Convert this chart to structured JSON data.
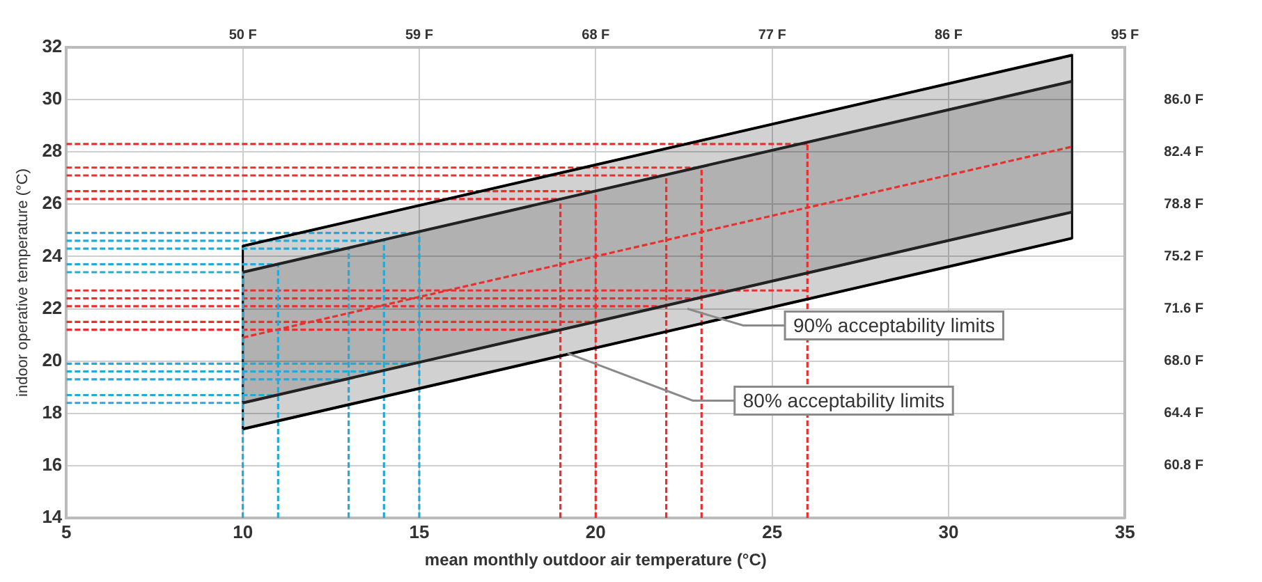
{
  "chart_data": {
    "type": "line",
    "xlabel": "mean monthly outdoor air temperature (°C)",
    "ylabel": "indoor operative temperature (°C)",
    "xlim": [
      5,
      35
    ],
    "xticks": [
      5,
      10,
      15,
      20,
      25,
      30,
      35
    ],
    "ylim": [
      14,
      32
    ],
    "yticks": [
      14,
      16,
      18,
      20,
      22,
      24,
      26,
      28,
      30,
      32
    ],
    "x2lim": [
      41,
      95
    ],
    "x2ticks": [
      {
        "value": 50,
        "label": "50 F"
      },
      {
        "value": 59,
        "label": "59 F"
      },
      {
        "value": 68,
        "label": "68 F"
      },
      {
        "value": 77,
        "label": "77 F"
      },
      {
        "value": 86,
        "label": "86 F"
      },
      {
        "value": 95,
        "label": "95 F"
      }
    ],
    "y2lim": [
      57.2,
      89.6
    ],
    "y2ticks": [
      {
        "value": 60.8,
        "label": "60.8 F"
      },
      {
        "value": 64.4,
        "label": "64.4 F"
      },
      {
        "value": 68.0,
        "label": "68.0 F"
      },
      {
        "value": 71.6,
        "label": "71.6 F"
      },
      {
        "value": 75.2,
        "label": "75.2 F"
      },
      {
        "value": 78.8,
        "label": "78.8 F"
      },
      {
        "value": 82.4,
        "label": "82.4 F"
      },
      {
        "value": 86.0,
        "label": "86.0 F"
      }
    ],
    "grid": true,
    "legend": false,
    "marker": "none",
    "series": [
      {
        "type": "line",
        "color": "#000000",
        "x": [
          10,
          33.5
        ],
        "values": [
          24.4,
          31.7
        ],
        "lower": [
          17.4,
          24.7
        ],
        "upper": [
          24.4,
          31.7
        ]
      },
      {
        "type": "line",
        "color": "#000000",
        "x": [
          10,
          33.5
        ],
        "values": [
          17.4,
          24.7
        ]
      },
      {
        "type": "line",
        "color": "#222222",
        "x": [
          10,
          33.5
        ],
        "values": [
          23.4,
          30.7
        ],
        "lower": [
          18.4,
          25.7
        ],
        "upper": [
          23.4,
          30.7
        ]
      },
      {
        "type": "line",
        "color": "#222222",
        "x": [
          10,
          33.5
        ],
        "values": [
          18.4,
          25.7
        ]
      },
      {
        "type": "line",
        "color": "#e8312f",
        "line_style": "dashed",
        "x": [
          10,
          33.5
        ],
        "values": [
          20.9,
          28.2
        ]
      },
      {
        "type": "line",
        "color": "#27a9d6",
        "line_style": "dashed",
        "x": [
          10,
          10
        ],
        "values": [
          14,
          23.4
        ]
      },
      {
        "type": "line",
        "color": "#27a9d6",
        "line_style": "dashed",
        "x": [
          5,
          10
        ],
        "values": [
          23.4,
          23.4
        ]
      },
      {
        "type": "line",
        "color": "#27a9d6",
        "line_style": "dashed",
        "x": [
          5,
          10
        ],
        "values": [
          18.4,
          18.4
        ]
      },
      {
        "type": "line",
        "color": "#27a9d6",
        "line_style": "dashed",
        "x": [
          11,
          11
        ],
        "values": [
          14,
          23.7
        ]
      },
      {
        "type": "line",
        "color": "#27a9d6",
        "line_style": "dashed",
        "x": [
          5,
          11
        ],
        "values": [
          23.7,
          23.7
        ]
      },
      {
        "type": "line",
        "color": "#27a9d6",
        "line_style": "dashed",
        "x": [
          5,
          11
        ],
        "values": [
          18.7,
          18.7
        ]
      },
      {
        "type": "line",
        "color": "#27a9d6",
        "line_style": "dashed",
        "x": [
          13,
          13
        ],
        "values": [
          14,
          24.3
        ]
      },
      {
        "type": "line",
        "color": "#27a9d6",
        "line_style": "dashed",
        "x": [
          5,
          13
        ],
        "values": [
          24.3,
          24.3
        ]
      },
      {
        "type": "line",
        "color": "#27a9d6",
        "line_style": "dashed",
        "x": [
          5,
          13
        ],
        "values": [
          19.3,
          19.3
        ]
      },
      {
        "type": "line",
        "color": "#27a9d6",
        "line_style": "dashed",
        "x": [
          14,
          14
        ],
        "values": [
          14,
          24.6
        ]
      },
      {
        "type": "line",
        "color": "#27a9d6",
        "line_style": "dashed",
        "x": [
          5,
          14
        ],
        "values": [
          24.6,
          24.6
        ]
      },
      {
        "type": "line",
        "color": "#27a9d6",
        "line_style": "dashed",
        "x": [
          5,
          14
        ],
        "values": [
          19.6,
          19.6
        ]
      },
      {
        "type": "line",
        "color": "#27a9d6",
        "line_style": "dashed",
        "x": [
          15,
          15
        ],
        "values": [
          14,
          24.9
        ]
      },
      {
        "type": "line",
        "color": "#27a9d6",
        "line_style": "dashed",
        "x": [
          5,
          15
        ],
        "values": [
          24.9,
          24.9
        ]
      },
      {
        "type": "line",
        "color": "#27a9d6",
        "line_style": "dashed",
        "x": [
          5,
          15
        ],
        "values": [
          19.9,
          19.9
        ]
      },
      {
        "type": "line",
        "color": "#e8312f",
        "line_style": "dashed",
        "x": [
          19,
          19
        ],
        "values": [
          14,
          26.2
        ]
      },
      {
        "type": "line",
        "color": "#e8312f",
        "line_style": "dashed",
        "x": [
          5,
          19
        ],
        "values": [
          26.2,
          26.2
        ]
      },
      {
        "type": "line",
        "color": "#e8312f",
        "line_style": "dashed",
        "x": [
          5,
          19
        ],
        "values": [
          21.2,
          21.2
        ]
      },
      {
        "type": "line",
        "color": "#e8312f",
        "line_style": "dashed",
        "x": [
          20,
          20
        ],
        "values": [
          14,
          26.5
        ]
      },
      {
        "type": "line",
        "color": "#e8312f",
        "line_style": "dashed",
        "x": [
          5,
          20
        ],
        "values": [
          26.5,
          26.5
        ]
      },
      {
        "type": "line",
        "color": "#e8312f",
        "line_style": "dashed",
        "x": [
          5,
          20
        ],
        "values": [
          21.5,
          21.5
        ]
      },
      {
        "type": "line",
        "color": "#e8312f",
        "line_style": "dashed",
        "x": [
          22,
          22
        ],
        "values": [
          14,
          27.1
        ]
      },
      {
        "type": "line",
        "color": "#e8312f",
        "line_style": "dashed",
        "x": [
          5,
          22
        ],
        "values": [
          27.1,
          27.1
        ]
      },
      {
        "type": "line",
        "color": "#e8312f",
        "line_style": "dashed",
        "x": [
          5,
          22
        ],
        "values": [
          22.1,
          22.1
        ]
      },
      {
        "type": "line",
        "color": "#e8312f",
        "line_style": "dashed",
        "x": [
          23,
          23
        ],
        "values": [
          14,
          27.4
        ]
      },
      {
        "type": "line",
        "color": "#e8312f",
        "line_style": "dashed",
        "x": [
          5,
          23
        ],
        "values": [
          27.4,
          27.4
        ]
      },
      {
        "type": "line",
        "color": "#e8312f",
        "line_style": "dashed",
        "x": [
          5,
          23
        ],
        "values": [
          22.4,
          22.4
        ]
      },
      {
        "type": "line",
        "color": "#e8312f",
        "line_style": "dashed",
        "x": [
          26,
          26
        ],
        "values": [
          14,
          28.3
        ]
      },
      {
        "type": "line",
        "color": "#e8312f",
        "line_style": "dashed",
        "x": [
          5,
          26
        ],
        "values": [
          28.3,
          28.3
        ]
      },
      {
        "type": "line",
        "color": "#e8312f",
        "line_style": "dashed",
        "x": [
          5,
          26
        ],
        "values": [
          22.7,
          22.7
        ]
      }
    ],
    "annotations": [
      {
        "text": "90% acceptability limits",
        "x": 22.6,
        "y": 22.0
      },
      {
        "text": "80% acceptability limits",
        "x": 19.2,
        "y": 20.3
      }
    ]
  }
}
